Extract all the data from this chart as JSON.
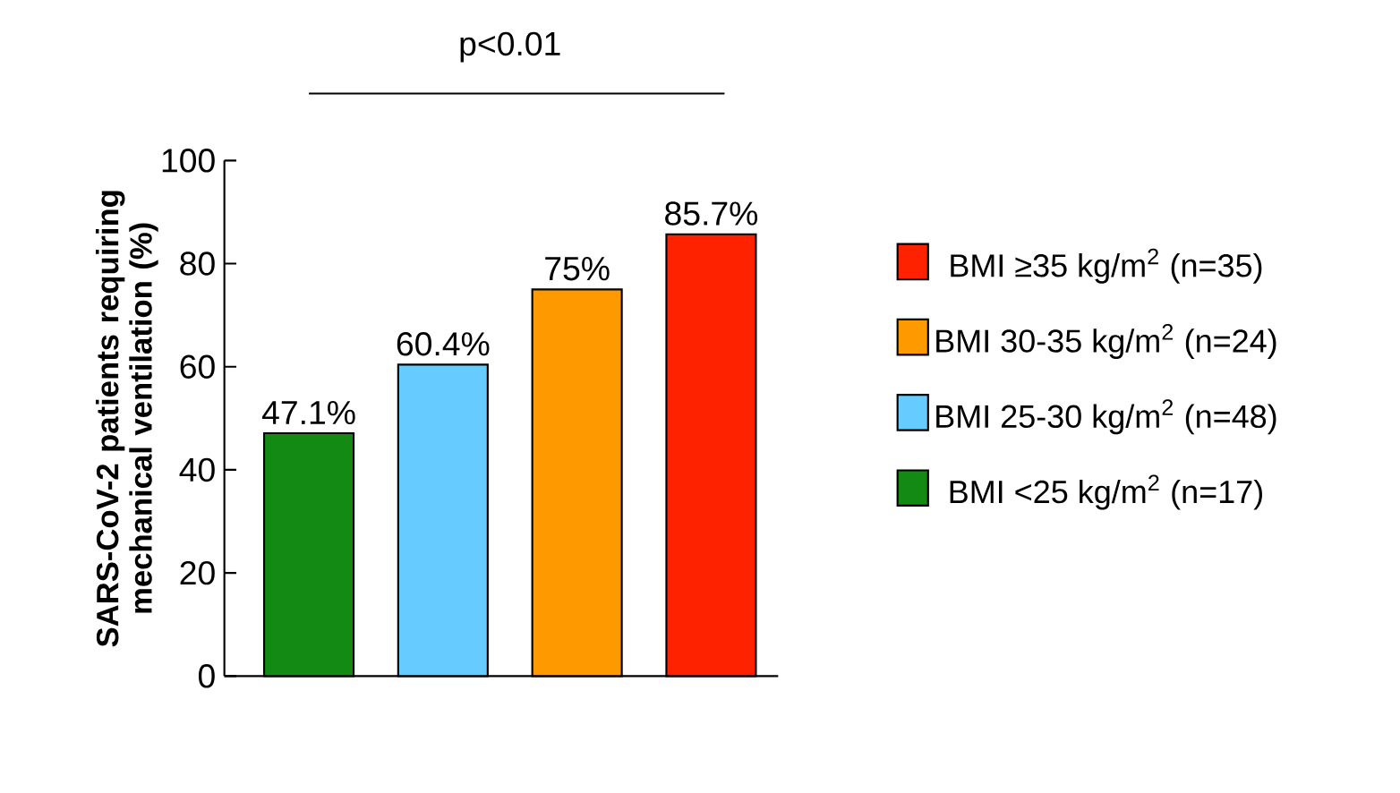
{
  "chart_data": {
    "type": "bar",
    "ylabel": "SARS-CoV-2 patients requiring mechanical ventilation (%)",
    "categories": [
      null,
      null,
      null,
      null
    ],
    "series": [
      {
        "name": "BMI <25 kg/m$^{2}$ (n=17)",
        "color": "#138a13",
        "values": [
          47.1,
          null,
          null,
          null
        ],
        "value_labels": [
          "47.1%",
          null,
          null,
          null
        ]
      },
      {
        "name": "BMI 25-30 kg/m$^{2}$ (n=48)",
        "color": "#66ccff",
        "values": [
          null,
          60.4,
          null,
          null
        ],
        "value_labels": [
          null,
          "60.4%",
          null,
          null
        ]
      },
      {
        "name": "BMI 30-35 kg/m$^{2}$ (n=24)",
        "color": "#ff9900",
        "values": [
          null,
          null,
          75,
          null
        ],
        "value_labels": [
          null,
          null,
          "75%",
          null
        ]
      },
      {
        "name": "BMI ≥35 kg/m$^{2}$ (n=35)",
        "color": "#ff2200",
        "values": [
          null,
          null,
          null,
          85.7
        ],
        "value_labels": [
          null,
          null,
          null,
          "85.7%"
        ]
      }
    ],
    "ylim": [
      0,
      100
    ],
    "yticks": [
      0,
      20,
      40,
      60,
      80,
      100
    ],
    "annotations": [
      "p<0.01"
    ],
    "legend": "right",
    "grid": false
  }
}
